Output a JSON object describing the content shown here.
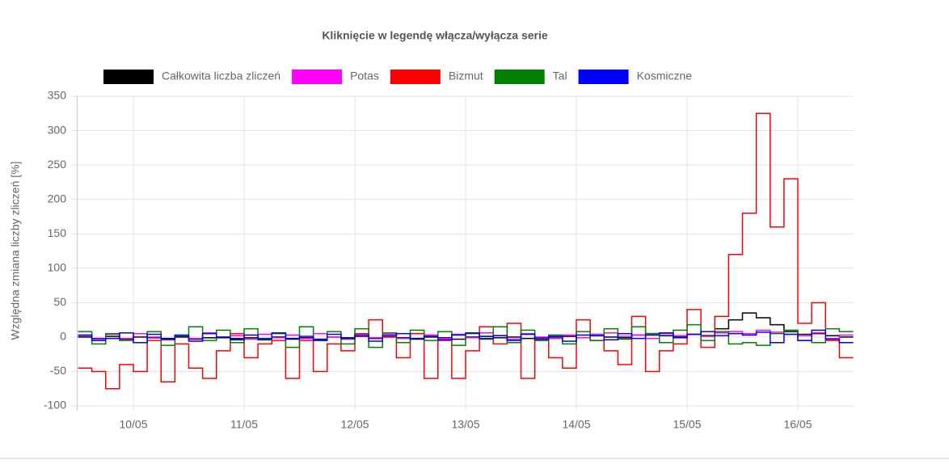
{
  "chart_data": {
    "type": "line",
    "step": true,
    "title": "Kliknięcie w legendę włącza/wyłącza serie",
    "y_label": "Względna zmiana liczby zliczeń [%]",
    "categories": [
      null,
      null,
      null,
      null,
      "10/05",
      null,
      null,
      null,
      null,
      null,
      null,
      null,
      "11/05",
      null,
      null,
      null,
      null,
      null,
      null,
      null,
      "12/05",
      null,
      null,
      null,
      null,
      null,
      null,
      null,
      "13/05",
      null,
      null,
      null,
      null,
      null,
      null,
      null,
      "14/05",
      null,
      null,
      null,
      null,
      null,
      null,
      null,
      "15/05",
      null,
      null,
      null,
      null,
      null,
      null,
      null,
      "16/05",
      null,
      null,
      null
    ],
    "ylim": [
      -100,
      350
    ],
    "yticks": [
      -100,
      -50,
      0,
      50,
      100,
      150,
      200,
      250,
      300,
      350
    ],
    "grid": true,
    "legend": "top",
    "series": [
      {
        "name": "Całkowita liczba zliczeń",
        "color": "#000000",
        "values": [
          0,
          -2,
          1,
          -3,
          0,
          -1,
          -2,
          0,
          -3,
          -1,
          0,
          -2,
          -1,
          -4,
          0,
          -2,
          -1,
          -3,
          0,
          -1,
          1,
          -2,
          0,
          -1,
          -2,
          0,
          -1,
          -3,
          0,
          1,
          -1,
          0,
          -2,
          -1,
          0,
          1,
          -1,
          2,
          0,
          -1,
          3,
          5,
          2,
          0,
          4,
          2,
          12,
          25,
          35,
          28,
          18,
          8,
          4,
          5,
          2,
          0
        ]
      },
      {
        "name": "Potas",
        "color": "#ff00ff",
        "values": [
          2,
          -3,
          4,
          -2,
          5,
          0,
          -4,
          3,
          -2,
          6,
          -1,
          2,
          -3,
          4,
          -1,
          3,
          -2,
          5,
          0,
          -3,
          2,
          -1,
          4,
          -2,
          5,
          3,
          -2,
          4,
          -1,
          6,
          2,
          -3,
          5,
          0,
          -2,
          3,
          -1,
          4,
          6,
          1,
          3,
          -2,
          5,
          2,
          4,
          1,
          6,
          8,
          5,
          10,
          7,
          4,
          2,
          6,
          -2,
          3
        ]
      },
      {
        "name": "Bizmut",
        "color": "#ff0000",
        "values": [
          -45,
          -50,
          -75,
          -40,
          -50,
          -5,
          -65,
          -10,
          -45,
          -60,
          -20,
          5,
          -30,
          -10,
          -5,
          -60,
          -5,
          -50,
          -10,
          -20,
          5,
          25,
          0,
          -30,
          5,
          -60,
          -5,
          -60,
          -20,
          15,
          -10,
          20,
          -60,
          -5,
          -30,
          -45,
          25,
          -5,
          -20,
          -40,
          30,
          -50,
          -20,
          -10,
          40,
          -15,
          30,
          120,
          180,
          325,
          160,
          230,
          20,
          50,
          -5,
          -30
        ]
      },
      {
        "name": "Tal",
        "color": "#008000",
        "values": [
          8,
          -10,
          5,
          -5,
          -8,
          8,
          -12,
          3,
          15,
          -5,
          10,
          -8,
          12,
          -3,
          5,
          -15,
          15,
          -5,
          8,
          -10,
          12,
          -15,
          6,
          -8,
          10,
          -5,
          8,
          -12,
          5,
          -3,
          15,
          -8,
          10,
          -5,
          3,
          -10,
          8,
          -5,
          12,
          -3,
          15,
          5,
          -8,
          10,
          18,
          -5,
          8,
          -10,
          -8,
          -12,
          5,
          10,
          -5,
          -8,
          12,
          8
        ]
      },
      {
        "name": "Kosmiczne",
        "color": "#0000ff",
        "values": [
          3,
          -5,
          -2,
          6,
          -8,
          4,
          -3,
          2,
          -6,
          5,
          -1,
          -4,
          3,
          -2,
          6,
          -3,
          1,
          -5,
          4,
          -2,
          3,
          -6,
          2,
          5,
          -3,
          1,
          -4,
          3,
          6,
          -2,
          2,
          -5,
          4,
          -3,
          1,
          -6,
          3,
          2,
          -4,
          5,
          -2,
          3,
          6,
          -1,
          4,
          8,
          2,
          5,
          3,
          7,
          -8,
          4,
          -5,
          10,
          -3,
          -8
        ]
      }
    ]
  }
}
